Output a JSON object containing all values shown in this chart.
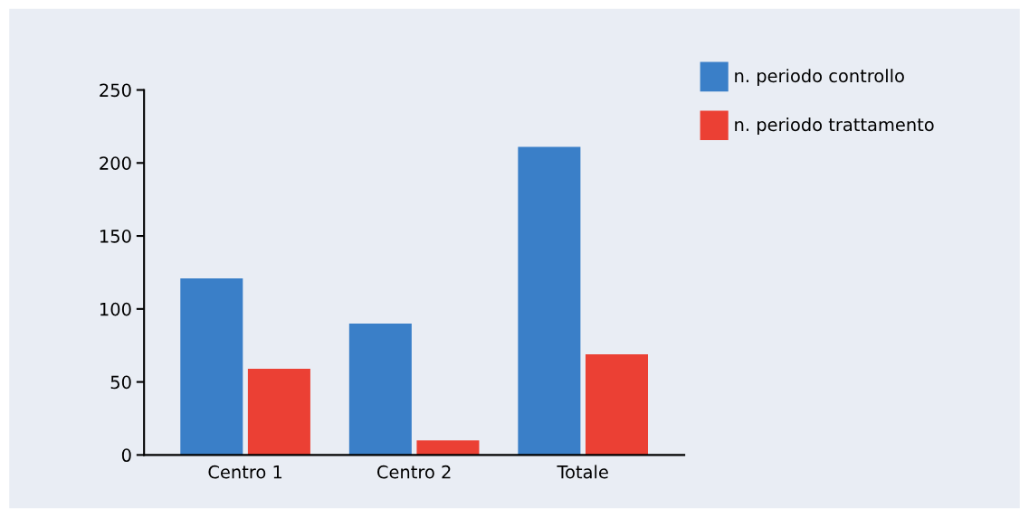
{
  "chart_data": {
    "type": "bar",
    "categories": [
      "Centro 1",
      "Centro 2",
      "Totale"
    ],
    "series": [
      {
        "name": "n. periodo controllo",
        "color": "#3a7fc8",
        "values": [
          121,
          90,
          211
        ]
      },
      {
        "name": "n. periodo trattamento",
        "color": "#eb4034",
        "values": [
          59,
          10,
          69
        ]
      }
    ],
    "ylim": [
      0,
      250
    ],
    "yticks": [
      0,
      50,
      100,
      150,
      200,
      250
    ],
    "grid": false,
    "legend": "top right"
  }
}
